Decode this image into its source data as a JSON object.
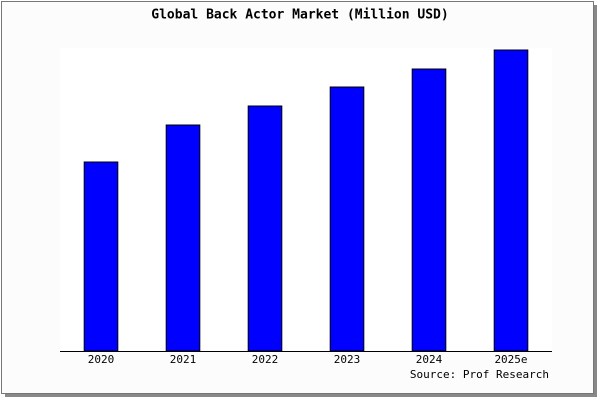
{
  "chart_data": {
    "type": "bar",
    "title": "Global Back Actor Market (Million USD)",
    "categories": [
      "2020",
      "2021",
      "2022",
      "2023",
      "2024",
      "2025e"
    ],
    "values": [
      189,
      226,
      245,
      264,
      282,
      301
    ],
    "color": "#0000ff",
    "ylim": [
      0,
      303
    ],
    "source": "Source: Prof Research"
  }
}
